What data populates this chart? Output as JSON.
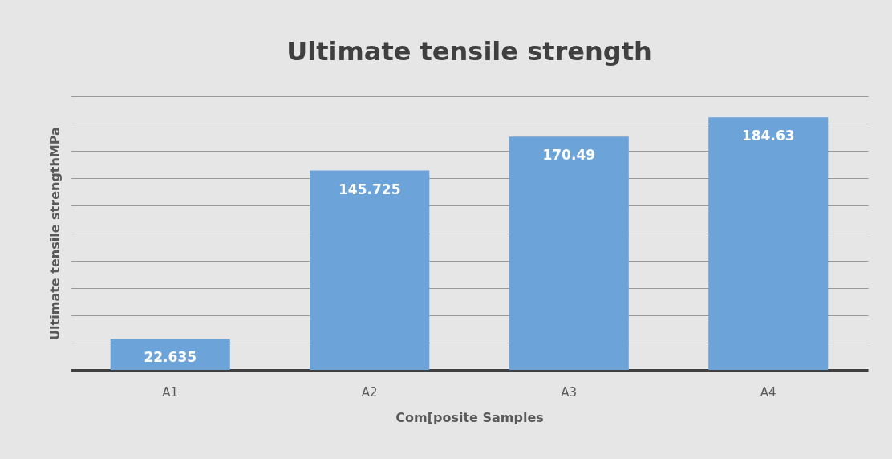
{
  "chart_data": {
    "type": "bar",
    "title": "Ultimate tensile strength",
    "xlabel": "Com[posite Samples",
    "ylabel": "Ultimate tensile strengthMPa",
    "categories": [
      "A1",
      "A2",
      "A3",
      "A4"
    ],
    "values": [
      22.635,
      145.725,
      170.49,
      184.63
    ],
    "color": "#6ca3d8",
    "ylim": [
      0,
      200
    ],
    "yticks": [
      {
        "value": 0,
        "label": null
      },
      {
        "value": 20,
        "label": null
      },
      {
        "value": 40,
        "label": null
      },
      {
        "value": 60,
        "label": null
      },
      {
        "value": 80,
        "label": null
      },
      {
        "value": 100,
        "label": null
      },
      {
        "value": 120,
        "label": null
      },
      {
        "value": 140,
        "label": null
      },
      {
        "value": 160,
        "label": null
      },
      {
        "value": 180,
        "label": null
      },
      {
        "value": 200,
        "label": null
      }
    ],
    "grid": "y",
    "tick_labels": "x",
    "data_labels": true
  }
}
